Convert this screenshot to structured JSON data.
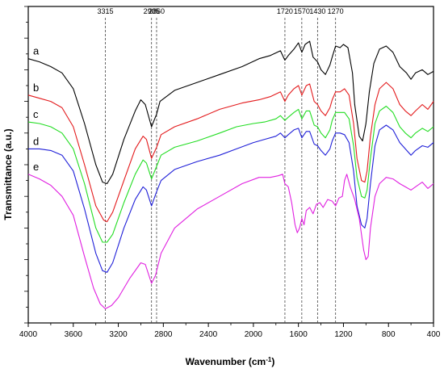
{
  "chart_data": {
    "type": "line",
    "title": "",
    "xlabel": "Wavenumber (cm",
    "xlabel_sup": "-1",
    "xlabel_suffix": ")",
    "ylabel": "Transmittance (a.u.)",
    "xlim": [
      4000,
      400
    ],
    "x_reversed": true,
    "y_ticks_labeled": false,
    "x_ticks": [
      "4000",
      "3600",
      "3200",
      "2800",
      "2400",
      "2000",
      "1600",
      "1200",
      "800",
      "400"
    ],
    "reference_lines": [
      {
        "x": 3315,
        "label": "3315"
      },
      {
        "x": 2905,
        "label": "2905"
      },
      {
        "x": 2860,
        "label": "2860"
      },
      {
        "x": 1720,
        "label": "1720"
      },
      {
        "x": 1570,
        "label": "1570"
      },
      {
        "x": 1430,
        "label": "1430"
      },
      {
        "x": 1270,
        "label": "1270"
      }
    ],
    "series": [
      {
        "name": "a",
        "color": "#000000",
        "points": [
          [
            4000,
            0.835
          ],
          [
            3900,
            0.825
          ],
          [
            3800,
            0.81
          ],
          [
            3700,
            0.79
          ],
          [
            3600,
            0.74
          ],
          [
            3500,
            0.63
          ],
          [
            3400,
            0.5
          ],
          [
            3340,
            0.445
          ],
          [
            3300,
            0.44
          ],
          [
            3250,
            0.47
          ],
          [
            3150,
            0.58
          ],
          [
            3050,
            0.67
          ],
          [
            3000,
            0.705
          ],
          [
            2960,
            0.69
          ],
          [
            2905,
            0.62
          ],
          [
            2860,
            0.66
          ],
          [
            2830,
            0.7
          ],
          [
            2700,
            0.735
          ],
          [
            2500,
            0.76
          ],
          [
            2300,
            0.785
          ],
          [
            2100,
            0.81
          ],
          [
            1950,
            0.835
          ],
          [
            1850,
            0.845
          ],
          [
            1760,
            0.86
          ],
          [
            1720,
            0.83
          ],
          [
            1690,
            0.845
          ],
          [
            1640,
            0.865
          ],
          [
            1600,
            0.885
          ],
          [
            1570,
            0.855
          ],
          [
            1540,
            0.88
          ],
          [
            1500,
            0.89
          ],
          [
            1470,
            0.84
          ],
          [
            1430,
            0.825
          ],
          [
            1400,
            0.8
          ],
          [
            1360,
            0.785
          ],
          [
            1320,
            0.815
          ],
          [
            1300,
            0.84
          ],
          [
            1270,
            0.875
          ],
          [
            1230,
            0.87
          ],
          [
            1200,
            0.88
          ],
          [
            1160,
            0.87
          ],
          [
            1120,
            0.79
          ],
          [
            1100,
            0.69
          ],
          [
            1060,
            0.59
          ],
          [
            1030,
            0.575
          ],
          [
            1000,
            0.63
          ],
          [
            970,
            0.73
          ],
          [
            930,
            0.82
          ],
          [
            880,
            0.865
          ],
          [
            820,
            0.875
          ],
          [
            760,
            0.855
          ],
          [
            700,
            0.81
          ],
          [
            640,
            0.79
          ],
          [
            600,
            0.77
          ],
          [
            560,
            0.79
          ],
          [
            500,
            0.8
          ],
          [
            450,
            0.785
          ],
          [
            400,
            0.795
          ]
        ]
      },
      {
        "name": "b",
        "color": "#e31a1c",
        "points": [
          [
            4000,
            0.72
          ],
          [
            3900,
            0.71
          ],
          [
            3800,
            0.7
          ],
          [
            3700,
            0.68
          ],
          [
            3600,
            0.62
          ],
          [
            3500,
            0.5
          ],
          [
            3400,
            0.37
          ],
          [
            3330,
            0.325
          ],
          [
            3300,
            0.32
          ],
          [
            3250,
            0.35
          ],
          [
            3150,
            0.45
          ],
          [
            3050,
            0.55
          ],
          [
            2980,
            0.59
          ],
          [
            2950,
            0.58
          ],
          [
            2905,
            0.52
          ],
          [
            2860,
            0.555
          ],
          [
            2820,
            0.595
          ],
          [
            2700,
            0.62
          ],
          [
            2500,
            0.645
          ],
          [
            2300,
            0.675
          ],
          [
            2100,
            0.695
          ],
          [
            1950,
            0.705
          ],
          [
            1850,
            0.715
          ],
          [
            1760,
            0.73
          ],
          [
            1720,
            0.7
          ],
          [
            1690,
            0.72
          ],
          [
            1640,
            0.74
          ],
          [
            1600,
            0.75
          ],
          [
            1570,
            0.72
          ],
          [
            1530,
            0.75
          ],
          [
            1500,
            0.755
          ],
          [
            1460,
            0.7
          ],
          [
            1430,
            0.69
          ],
          [
            1400,
            0.67
          ],
          [
            1360,
            0.655
          ],
          [
            1320,
            0.68
          ],
          [
            1300,
            0.705
          ],
          [
            1270,
            0.73
          ],
          [
            1230,
            0.73
          ],
          [
            1190,
            0.74
          ],
          [
            1150,
            0.72
          ],
          [
            1110,
            0.63
          ],
          [
            1080,
            0.52
          ],
          [
            1040,
            0.45
          ],
          [
            1010,
            0.445
          ],
          [
            990,
            0.48
          ],
          [
            960,
            0.59
          ],
          [
            920,
            0.69
          ],
          [
            880,
            0.74
          ],
          [
            820,
            0.76
          ],
          [
            760,
            0.74
          ],
          [
            700,
            0.69
          ],
          [
            650,
            0.67
          ],
          [
            600,
            0.655
          ],
          [
            560,
            0.67
          ],
          [
            500,
            0.69
          ],
          [
            450,
            0.675
          ],
          [
            400,
            0.7
          ]
        ]
      },
      {
        "name": "c",
        "color": "#22dd22",
        "points": [
          [
            4000,
            0.635
          ],
          [
            3900,
            0.63
          ],
          [
            3800,
            0.62
          ],
          [
            3700,
            0.6
          ],
          [
            3600,
            0.55
          ],
          [
            3500,
            0.44
          ],
          [
            3400,
            0.3
          ],
          [
            3340,
            0.255
          ],
          [
            3300,
            0.255
          ],
          [
            3250,
            0.28
          ],
          [
            3150,
            0.38
          ],
          [
            3050,
            0.47
          ],
          [
            2980,
            0.515
          ],
          [
            2950,
            0.505
          ],
          [
            2905,
            0.455
          ],
          [
            2860,
            0.495
          ],
          [
            2820,
            0.53
          ],
          [
            2700,
            0.555
          ],
          [
            2500,
            0.575
          ],
          [
            2300,
            0.6
          ],
          [
            2150,
            0.62
          ],
          [
            2000,
            0.63
          ],
          [
            1900,
            0.635
          ],
          [
            1800,
            0.645
          ],
          [
            1760,
            0.655
          ],
          [
            1720,
            0.64
          ],
          [
            1690,
            0.65
          ],
          [
            1640,
            0.665
          ],
          [
            1600,
            0.675
          ],
          [
            1570,
            0.645
          ],
          [
            1530,
            0.67
          ],
          [
            1500,
            0.67
          ],
          [
            1460,
            0.625
          ],
          [
            1430,
            0.62
          ],
          [
            1400,
            0.6
          ],
          [
            1360,
            0.585
          ],
          [
            1320,
            0.61
          ],
          [
            1300,
            0.64
          ],
          [
            1270,
            0.665
          ],
          [
            1230,
            0.665
          ],
          [
            1190,
            0.665
          ],
          [
            1150,
            0.645
          ],
          [
            1110,
            0.56
          ],
          [
            1080,
            0.46
          ],
          [
            1040,
            0.4
          ],
          [
            1010,
            0.395
          ],
          [
            990,
            0.42
          ],
          [
            960,
            0.52
          ],
          [
            920,
            0.63
          ],
          [
            880,
            0.67
          ],
          [
            820,
            0.685
          ],
          [
            760,
            0.665
          ],
          [
            700,
            0.62
          ],
          [
            650,
            0.6
          ],
          [
            600,
            0.585
          ],
          [
            560,
            0.6
          ],
          [
            500,
            0.615
          ],
          [
            450,
            0.605
          ],
          [
            400,
            0.62
          ]
        ]
      },
      {
        "name": "d",
        "color": "#1f1fd8",
        "points": [
          [
            4000,
            0.55
          ],
          [
            3900,
            0.55
          ],
          [
            3800,
            0.545
          ],
          [
            3700,
            0.53
          ],
          [
            3600,
            0.48
          ],
          [
            3500,
            0.36
          ],
          [
            3400,
            0.22
          ],
          [
            3340,
            0.165
          ],
          [
            3300,
            0.16
          ],
          [
            3250,
            0.19
          ],
          [
            3150,
            0.3
          ],
          [
            3050,
            0.39
          ],
          [
            2980,
            0.43
          ],
          [
            2950,
            0.42
          ],
          [
            2905,
            0.37
          ],
          [
            2860,
            0.415
          ],
          [
            2820,
            0.45
          ],
          [
            2700,
            0.485
          ],
          [
            2500,
            0.51
          ],
          [
            2300,
            0.53
          ],
          [
            2150,
            0.55
          ],
          [
            2000,
            0.57
          ],
          [
            1900,
            0.58
          ],
          [
            1800,
            0.59
          ],
          [
            1760,
            0.6
          ],
          [
            1720,
            0.585
          ],
          [
            1690,
            0.595
          ],
          [
            1640,
            0.61
          ],
          [
            1600,
            0.615
          ],
          [
            1570,
            0.585
          ],
          [
            1530,
            0.605
          ],
          [
            1500,
            0.605
          ],
          [
            1460,
            0.565
          ],
          [
            1430,
            0.56
          ],
          [
            1400,
            0.545
          ],
          [
            1360,
            0.53
          ],
          [
            1320,
            0.55
          ],
          [
            1300,
            0.575
          ],
          [
            1270,
            0.6
          ],
          [
            1230,
            0.6
          ],
          [
            1190,
            0.595
          ],
          [
            1150,
            0.57
          ],
          [
            1110,
            0.48
          ],
          [
            1080,
            0.37
          ],
          [
            1040,
            0.31
          ],
          [
            1010,
            0.3
          ],
          [
            990,
            0.33
          ],
          [
            960,
            0.44
          ],
          [
            920,
            0.56
          ],
          [
            880,
            0.61
          ],
          [
            820,
            0.625
          ],
          [
            760,
            0.61
          ],
          [
            700,
            0.57
          ],
          [
            650,
            0.55
          ],
          [
            600,
            0.53
          ],
          [
            560,
            0.545
          ],
          [
            500,
            0.56
          ],
          [
            450,
            0.555
          ],
          [
            400,
            0.57
          ]
        ]
      },
      {
        "name": "e",
        "color": "#e020e0",
        "points": [
          [
            4000,
            0.47
          ],
          [
            3900,
            0.455
          ],
          [
            3800,
            0.435
          ],
          [
            3700,
            0.4
          ],
          [
            3600,
            0.34
          ],
          [
            3500,
            0.21
          ],
          [
            3420,
            0.11
          ],
          [
            3360,
            0.06
          ],
          [
            3315,
            0.045
          ],
          [
            3260,
            0.055
          ],
          [
            3200,
            0.08
          ],
          [
            3100,
            0.14
          ],
          [
            3000,
            0.19
          ],
          [
            2960,
            0.185
          ],
          [
            2905,
            0.125
          ],
          [
            2870,
            0.15
          ],
          [
            2820,
            0.22
          ],
          [
            2700,
            0.3
          ],
          [
            2500,
            0.36
          ],
          [
            2300,
            0.4
          ],
          [
            2100,
            0.44
          ],
          [
            1950,
            0.46
          ],
          [
            1850,
            0.46
          ],
          [
            1780,
            0.465
          ],
          [
            1740,
            0.47
          ],
          [
            1720,
            0.44
          ],
          [
            1690,
            0.43
          ],
          [
            1660,
            0.38
          ],
          [
            1630,
            0.31
          ],
          [
            1610,
            0.285
          ],
          [
            1590,
            0.3
          ],
          [
            1570,
            0.33
          ],
          [
            1550,
            0.31
          ],
          [
            1530,
            0.355
          ],
          [
            1500,
            0.365
          ],
          [
            1470,
            0.345
          ],
          [
            1440,
            0.375
          ],
          [
            1410,
            0.38
          ],
          [
            1380,
            0.365
          ],
          [
            1340,
            0.39
          ],
          [
            1300,
            0.385
          ],
          [
            1270,
            0.37
          ],
          [
            1240,
            0.395
          ],
          [
            1210,
            0.4
          ],
          [
            1190,
            0.45
          ],
          [
            1170,
            0.47
          ],
          [
            1140,
            0.43
          ],
          [
            1100,
            0.39
          ],
          [
            1060,
            0.33
          ],
          [
            1020,
            0.23
          ],
          [
            1000,
            0.2
          ],
          [
            980,
            0.21
          ],
          [
            960,
            0.3
          ],
          [
            920,
            0.4
          ],
          [
            880,
            0.44
          ],
          [
            820,
            0.46
          ],
          [
            760,
            0.455
          ],
          [
            700,
            0.44
          ],
          [
            650,
            0.43
          ],
          [
            600,
            0.42
          ],
          [
            560,
            0.43
          ],
          [
            500,
            0.445
          ],
          [
            450,
            0.425
          ],
          [
            400,
            0.44
          ]
        ]
      }
    ]
  }
}
